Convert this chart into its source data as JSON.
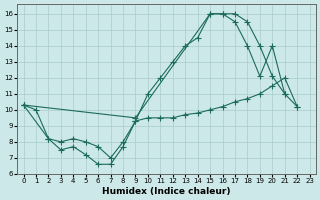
{
  "background_color": "#cde8e8",
  "line_color": "#1a6b5a",
  "grid_color": "#aacccc",
  "xlim": [
    -0.5,
    23.5
  ],
  "ylim": [
    6.0,
    16.6
  ],
  "xticks": [
    0,
    1,
    2,
    3,
    4,
    5,
    6,
    7,
    8,
    9,
    10,
    11,
    12,
    13,
    14,
    15,
    16,
    17,
    18,
    19,
    20,
    21,
    22,
    23
  ],
  "yticks": [
    6,
    7,
    8,
    9,
    10,
    11,
    12,
    13,
    14,
    15,
    16
  ],
  "xlabel": "Humidex (Indice chaleur)",
  "curve1_x": [
    0,
    1,
    2,
    3,
    4,
    5,
    6,
    7,
    8,
    9,
    10,
    11,
    12,
    13,
    14,
    15,
    16,
    17,
    18,
    19,
    20,
    21
  ],
  "curve1_y": [
    10.3,
    10.0,
    8.2,
    7.5,
    7.7,
    7.2,
    6.6,
    6.6,
    7.7,
    9.3,
    11.0,
    12.0,
    13.0,
    14.0,
    14.5,
    16.0,
    16.0,
    16.0,
    15.5,
    14.0,
    12.1,
    11.0
  ],
  "line2_x": [
    0,
    2,
    3,
    4,
    5,
    6,
    7,
    8,
    9,
    10,
    11,
    12,
    13,
    14,
    15,
    16,
    17,
    18,
    19,
    20,
    21,
    22
  ],
  "line2_y": [
    10.3,
    8.2,
    8.0,
    8.2,
    8.0,
    7.7,
    7.0,
    8.0,
    9.3,
    9.5,
    9.5,
    9.5,
    9.7,
    9.8,
    10.0,
    10.2,
    10.5,
    10.7,
    11.0,
    11.5,
    12.0,
    10.2
  ],
  "line3_x": [
    0,
    9,
    15,
    16,
    17,
    18,
    19,
    20,
    21,
    22
  ],
  "line3_y": [
    10.3,
    9.5,
    16.0,
    16.0,
    15.5,
    14.0,
    12.1,
    14.0,
    11.0,
    10.2
  ]
}
